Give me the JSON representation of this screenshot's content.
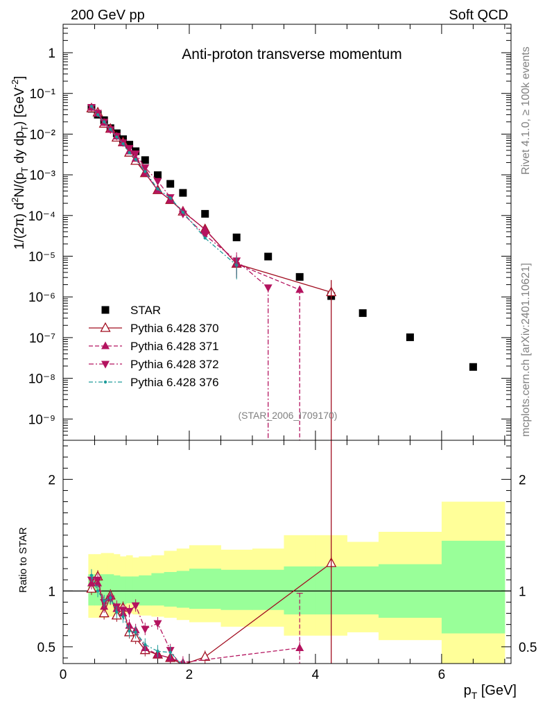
{
  "header": {
    "left": "200 GeV pp",
    "right": "Soft QCD"
  },
  "side": {
    "rivet": "Rivet 4.1.0, ≥ 100k events",
    "mcplots": "mcplots.cern.ch [arXiv:2401.10621]"
  },
  "chart_data": [
    {
      "type": "scatter",
      "title": "Anti-proton transverse momentum",
      "analysis_tag": "(STAR_2006_I709170)",
      "ylabel": "1/(2π) d²N/(p_T dy dp_T) [GeV⁻²]",
      "xlabel": "p_T [GeV]",
      "yscale": "log",
      "xlim": [
        0,
        7.1
      ],
      "ylim": [
        3e-10,
        5
      ],
      "y_tick_labels": [
        "10⁻⁹",
        "10⁻⁸",
        "10⁻⁷",
        "10⁻⁶",
        "10⁻⁵",
        "10⁻⁴",
        "10⁻³",
        "10⁻²",
        "10⁻¹",
        "1"
      ],
      "x_tick_labels": [
        "0",
        "2",
        "4",
        "6"
      ],
      "legend": [
        "STAR",
        "Pythia 6.428 370",
        "Pythia 6.428 371",
        "Pythia 6.428 372",
        "Pythia 6.428 376"
      ],
      "series": [
        {
          "name": "STAR",
          "color": "#000000",
          "x": [
            0.45,
            0.55,
            0.65,
            0.75,
            0.85,
            0.95,
            1.05,
            1.15,
            1.3,
            1.5,
            1.7,
            1.9,
            2.25,
            2.75,
            3.25,
            3.75,
            4.25,
            4.75,
            5.5,
            6.5
          ],
          "y": [
            0.042,
            0.03,
            0.022,
            0.014,
            0.0105,
            0.0075,
            0.0055,
            0.0038,
            0.0023,
            0.00098,
            0.0006,
            0.00036,
            0.00011,
            2.9e-05,
            9.8e-06,
            3.1e-06,
            1.05e-06,
            4e-07,
            1.02e-07,
            1.9e-08
          ]
        },
        {
          "name": "Pythia 6.428 370",
          "color": "#a10c1f",
          "x": [
            0.45,
            0.55,
            0.65,
            0.75,
            0.85,
            0.95,
            1.05,
            1.15,
            1.3,
            1.5,
            1.7,
            1.9,
            2.25,
            2.75,
            4.25
          ],
          "y": [
            0.043,
            0.034,
            0.018,
            0.0135,
            0.0082,
            0.0063,
            0.0035,
            0.0022,
            0.0011,
            0.00042,
            0.00024,
            0.000125,
            4.6e-05,
            6.5e-06,
            1.3e-06
          ]
        },
        {
          "name": "Pythia 6.428 371",
          "color": "#b4135f",
          "x": [
            0.45,
            0.55,
            0.65,
            0.75,
            0.85,
            0.95,
            1.05,
            1.15,
            1.3,
            1.5,
            1.7,
            1.9,
            2.25,
            2.75,
            3.75
          ],
          "y": [
            0.045,
            0.032,
            0.019,
            0.013,
            0.0088,
            0.006,
            0.0038,
            0.0025,
            0.0011,
            0.00042,
            0.00024,
            0.00013,
            4.5e-05,
            6.5e-06,
            1.5e-06
          ]
        },
        {
          "name": "Pythia 6.428 372",
          "color": "#b4135f",
          "x": [
            0.45,
            0.55,
            0.65,
            0.75,
            0.85,
            0.95,
            1.05,
            1.15,
            1.3,
            1.5,
            1.7,
            1.9,
            2.25,
            2.75,
            3.25
          ],
          "y": [
            0.046,
            0.033,
            0.02,
            0.013,
            0.009,
            0.0062,
            0.0045,
            0.0033,
            0.0015,
            0.0007,
            0.00028,
            0.00011,
            3.3e-05,
            7.8e-06,
            1.7e-06
          ]
        },
        {
          "name": "Pythia 6.428 376",
          "color": "#1c9b99",
          "x": [
            0.45,
            0.55,
            0.65,
            0.75,
            0.85,
            0.95,
            1.05,
            1.15,
            1.3,
            1.5,
            1.7,
            1.9,
            2.25,
            2.75
          ],
          "y": [
            0.048,
            0.03,
            0.02,
            0.0132,
            0.0085,
            0.0058,
            0.0035,
            0.0024,
            0.0012,
            0.00045,
            0.00027,
            0.00012,
            2.8e-05,
            6e-06
          ]
        }
      ]
    },
    {
      "type": "line",
      "ylabel": "Ratio to STAR",
      "xlabel": "p_T [GeV]",
      "xlim": [
        0,
        7.1
      ],
      "ylim": [
        0.35,
        2.35
      ],
      "y_tick_labels": [
        "0.5",
        "1",
        "2"
      ],
      "x_tick_labels": [
        "0",
        "2",
        "4",
        "6"
      ],
      "bands": {
        "edges": [
          0.4,
          0.5,
          0.6,
          0.7,
          0.8,
          0.9,
          1.0,
          1.1,
          1.2,
          1.4,
          1.6,
          1.8,
          2.0,
          2.5,
          3.0,
          3.5,
          4.0,
          4.5,
          5.0,
          6.0,
          7.0
        ],
        "yellow_lo": [
          0.76,
          0.76,
          0.76,
          0.77,
          0.78,
          0.79,
          0.8,
          0.79,
          0.78,
          0.77,
          0.76,
          0.74,
          0.72,
          0.68,
          0.68,
          0.6,
          0.6,
          0.63,
          0.56,
          0.33
        ],
        "yellow_hi": [
          1.33,
          1.33,
          1.34,
          1.34,
          1.33,
          1.31,
          1.32,
          1.3,
          1.31,
          1.32,
          1.36,
          1.38,
          1.41,
          1.37,
          1.38,
          1.5,
          1.5,
          1.44,
          1.53,
          1.8
        ],
        "green_lo": [
          0.87,
          0.87,
          0.87,
          0.88,
          0.88,
          0.88,
          0.89,
          0.88,
          0.87,
          0.87,
          0.86,
          0.85,
          0.84,
          0.83,
          0.83,
          0.79,
          0.79,
          0.79,
          0.76,
          0.62
        ],
        "green_hi": [
          1.15,
          1.15,
          1.15,
          1.15,
          1.14,
          1.13,
          1.13,
          1.13,
          1.14,
          1.16,
          1.17,
          1.18,
          1.2,
          1.19,
          1.19,
          1.22,
          1.22,
          1.22,
          1.24,
          1.45
        ]
      },
      "series": [
        {
          "name": "Pythia 6.428 370",
          "color": "#a10c1f",
          "x": [
            0.45,
            0.55,
            0.65,
            0.75,
            0.85,
            0.95,
            1.05,
            1.15,
            1.3,
            1.5,
            1.7,
            1.9,
            2.25,
            4.25
          ],
          "y": [
            1.02,
            1.13,
            0.8,
            0.96,
            0.78,
            0.85,
            0.63,
            0.58,
            0.47,
            0.43,
            0.4,
            0.34,
            0.41,
            1.25
          ]
        },
        {
          "name": "Pythia 6.428 371",
          "color": "#b4135f",
          "x": [
            0.45,
            0.55,
            0.65,
            0.75,
            0.85,
            0.95,
            1.05,
            1.15,
            1.3,
            1.5,
            1.7,
            1.9,
            3.75
          ],
          "y": [
            1.07,
            1.07,
            0.86,
            0.95,
            0.84,
            0.8,
            0.69,
            0.65,
            0.49,
            0.43,
            0.4,
            0.36,
            0.49
          ]
        },
        {
          "name": "Pythia 6.428 372",
          "color": "#b4135f",
          "x": [
            0.45,
            0.55,
            0.65,
            0.75,
            0.85,
            0.95,
            1.05,
            1.15,
            1.3,
            1.5,
            1.7,
            1.9,
            2.25
          ],
          "y": [
            1.1,
            1.1,
            0.9,
            0.93,
            0.86,
            0.83,
            0.82,
            0.87,
            0.66,
            0.71,
            0.47,
            0.3,
            0.3
          ]
        },
        {
          "name": "Pythia 6.428 376",
          "color": "#1c9b99",
          "x": [
            0.45,
            0.55,
            0.65,
            0.75,
            0.85,
            0.95,
            1.05,
            1.15,
            1.3,
            1.5,
            1.7,
            1.9
          ],
          "y": [
            1.14,
            1.0,
            0.91,
            0.94,
            0.81,
            0.77,
            0.64,
            0.63,
            0.52,
            0.46,
            0.45,
            0.33
          ]
        }
      ]
    }
  ]
}
